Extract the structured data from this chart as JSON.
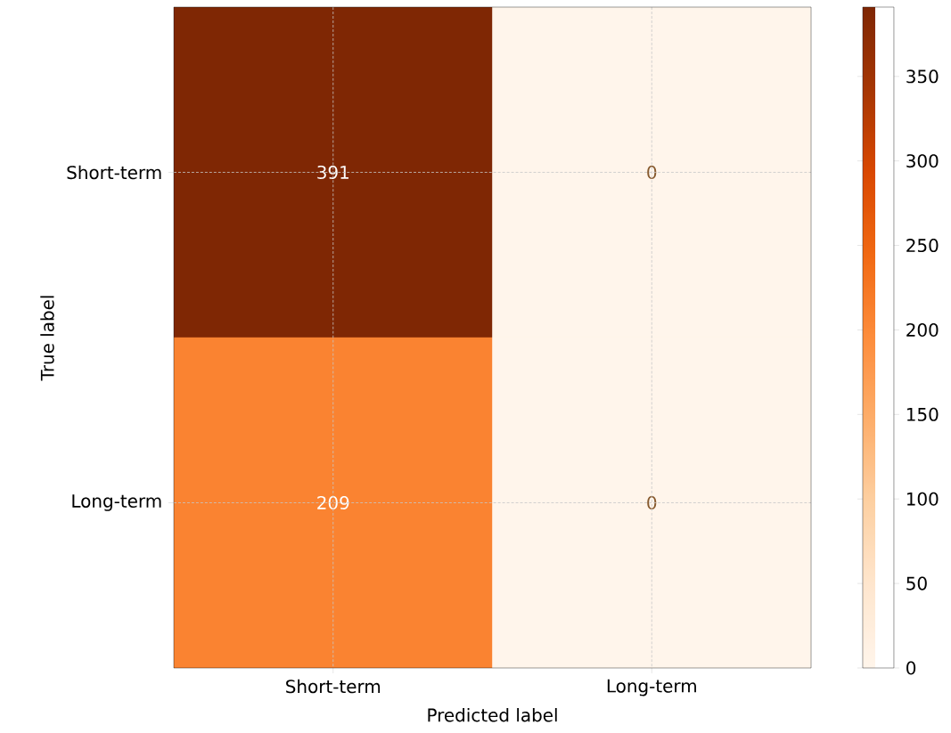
{
  "chart_data": {
    "type": "heatmap",
    "xlabel": "Predicted label",
    "ylabel": "True label",
    "categories": [
      "Short-term",
      "Long-term"
    ],
    "y_categories": [
      "Short-term",
      "Long-term"
    ],
    "cells": [
      [
        391,
        0
      ],
      [
        209,
        0
      ]
    ],
    "data_labels": true,
    "clim": [
      0,
      391
    ],
    "cticks": [
      0,
      50,
      100,
      150,
      200,
      250,
      300,
      350
    ],
    "grid": true
  }
}
